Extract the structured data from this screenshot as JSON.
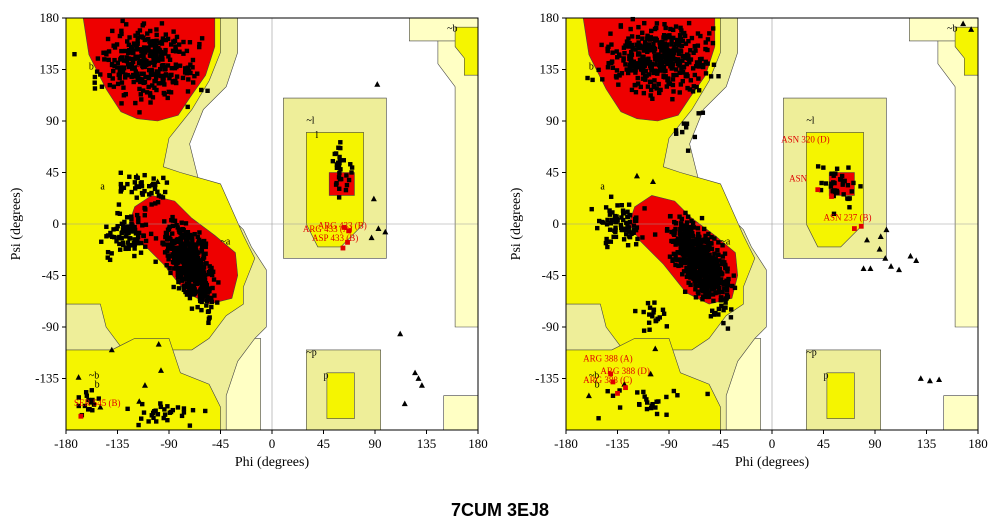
{
  "caption": "7CUM 3EJ8",
  "colors": {
    "core": "#ee0000",
    "allowed": "#f5f500",
    "generous": "#eeee99",
    "generous_outer": "#ffffc4",
    "point": "#000000",
    "flagged": "#e00000"
  },
  "chart_data": [
    {
      "type": "scatter",
      "title": "7CUM",
      "xlabel": "Phi (degrees)",
      "ylabel": "Psi (degrees)",
      "xlim": [
        -180,
        180
      ],
      "ylim": [
        -180,
        180
      ],
      "xticks": [
        "-180",
        "-135",
        "-90",
        "-45",
        "0",
        "45",
        "90",
        "135",
        "180"
      ],
      "yticks": [
        "180",
        "135",
        "90",
        "45",
        "0",
        "-45",
        "-90",
        "-135"
      ],
      "region_labels": [
        "b",
        "~b",
        "a",
        "~a",
        "~l",
        "l",
        "~p",
        "p",
        "b",
        "~b",
        "~b"
      ],
      "residue_labels": [
        "ARG 433 (B)",
        "ARG 433 (A)",
        "ASP 433 (B)",
        "SER 545 (B)"
      ],
      "flagged_points": [
        [
          63,
          -3
        ],
        [
          67,
          -6
        ],
        [
          66,
          -16
        ],
        [
          62,
          -21
        ],
        [
          -167,
          -168
        ]
      ],
      "series": [
        {
          "marker": "triangle",
          "points": [
            [
              92,
              122
            ],
            [
              89,
              22
            ],
            [
              93,
              -4
            ],
            [
              87,
              -12
            ],
            [
              99,
              -7
            ],
            [
              112,
              -96
            ],
            [
              125,
              -130
            ],
            [
              128,
              -135
            ],
            [
              131,
              -141
            ],
            [
              116,
              -157
            ],
            [
              -118,
              42
            ],
            [
              -100,
              37
            ],
            [
              -99,
              -105
            ],
            [
              -97,
              -128
            ],
            [
              -111,
              -141
            ],
            [
              -116,
              -155
            ],
            [
              -140,
              -110
            ],
            [
              -169,
              -134
            ],
            [
              -150,
              -160
            ]
          ]
        }
      ]
    },
    {
      "type": "scatter",
      "title": "3EJ8",
      "xlabel": "Phi (degrees)",
      "ylabel": "Psi (degrees)",
      "xlim": [
        -180,
        180
      ],
      "ylim": [
        -180,
        180
      ],
      "xticks": [
        "-180",
        "-135",
        "-90",
        "-45",
        "0",
        "45",
        "90",
        "135",
        "180"
      ],
      "yticks": [
        "180",
        "135",
        "90",
        "45",
        "0",
        "-45",
        "-90",
        "-135"
      ],
      "region_labels": [
        "b",
        "~b",
        "a",
        "~a",
        "~l",
        "~p",
        "p",
        "b",
        "~b",
        "~b"
      ],
      "residue_labels": [
        "ASN 320 (D)",
        "ASN",
        "ASN 237 (B)",
        "ARG 388 (A)",
        "ARG 388 (D)",
        "ARG 388 (C)"
      ],
      "flagged_points": [
        [
          40,
          30
        ],
        [
          52,
          24
        ],
        [
          78,
          -2
        ],
        [
          72,
          -4
        ],
        [
          -141,
          -131
        ],
        [
          -139,
          -138
        ],
        [
          -128,
          -143
        ],
        [
          -135,
          -148
        ]
      ],
      "series": [
        {
          "marker": "triangle",
          "points": [
            [
              167,
              175
            ],
            [
              174,
              170
            ],
            [
              94,
              -22
            ],
            [
              99,
              -30
            ],
            [
              104,
              -37
            ],
            [
              111,
              -40
            ],
            [
              121,
              -28
            ],
            [
              126,
              -32
            ],
            [
              80,
              -39
            ],
            [
              86,
              -39
            ],
            [
              95,
              -11
            ],
            [
              100,
              -5
            ],
            [
              83,
              -14
            ],
            [
              130,
              -135
            ],
            [
              138,
              -137
            ],
            [
              146,
              -136
            ],
            [
              -118,
              42
            ],
            [
              -104,
              37
            ],
            [
              -102,
              -109
            ],
            [
              -106,
              -131
            ],
            [
              -129,
              -140
            ],
            [
              -160,
              -150
            ]
          ]
        }
      ]
    }
  ]
}
